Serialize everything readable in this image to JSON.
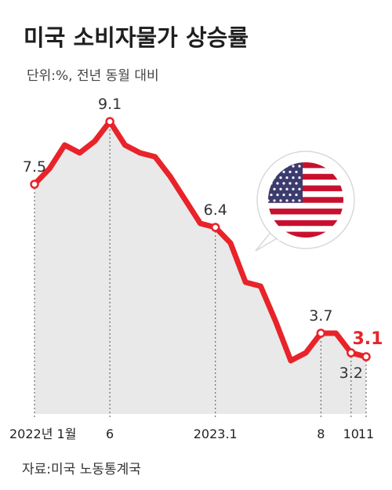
{
  "title": "미국 소비자물가 상승률",
  "subtitle": "단위:%, 전년 동월 대비",
  "source": "자료:미국 노동통계국",
  "colors": {
    "line": "#e8232a",
    "area": "#e9e9e9",
    "highlight": "#e8232a",
    "flag_red": "#c8102e",
    "flag_blue": "#3c3b6e"
  },
  "icon": "us-flag-speech-bubble-icon",
  "chart_data": {
    "type": "line",
    "title": "미국 소비자물가 상승률",
    "ylabel": "단위:%, 전년 동월 대비",
    "x": [
      "2022-01",
      "2022-02",
      "2022-03",
      "2022-04",
      "2022-05",
      "2022-06",
      "2022-07",
      "2022-08",
      "2022-09",
      "2022-10",
      "2022-11",
      "2022-12",
      "2023-01",
      "2023-02",
      "2023-03",
      "2023-04",
      "2023-05",
      "2023-06",
      "2023-07",
      "2023-08",
      "2023-09",
      "2023-10",
      "2023-11"
    ],
    "values": [
      7.5,
      7.9,
      8.5,
      8.3,
      8.6,
      9.1,
      8.5,
      8.3,
      8.2,
      7.7,
      7.1,
      6.5,
      6.4,
      6.0,
      5.0,
      4.9,
      4.0,
      3.0,
      3.2,
      3.7,
      3.7,
      3.2,
      3.1
    ],
    "ylim": [
      2.0,
      10.0
    ],
    "grid": false,
    "ticks": [
      {
        "index": 0,
        "label": "2022년 1월"
      },
      {
        "index": 5,
        "label": "6"
      },
      {
        "index": 12,
        "label": "2023.1"
      },
      {
        "index": 19,
        "label": "8"
      },
      {
        "index": 21,
        "label": "10"
      },
      {
        "index": 22,
        "label": "11"
      }
    ],
    "data_labels": [
      {
        "index": 0,
        "text": "7.5",
        "highlight": false,
        "place": "above"
      },
      {
        "index": 5,
        "text": "9.1",
        "highlight": false,
        "place": "above"
      },
      {
        "index": 12,
        "text": "6.4",
        "highlight": false,
        "place": "above"
      },
      {
        "index": 19,
        "text": "3.7",
        "highlight": false,
        "place": "above"
      },
      {
        "index": 21,
        "text": "3.2",
        "highlight": false,
        "place": "below"
      },
      {
        "index": 22,
        "text": "3.1",
        "highlight": true,
        "place": "above"
      }
    ]
  }
}
